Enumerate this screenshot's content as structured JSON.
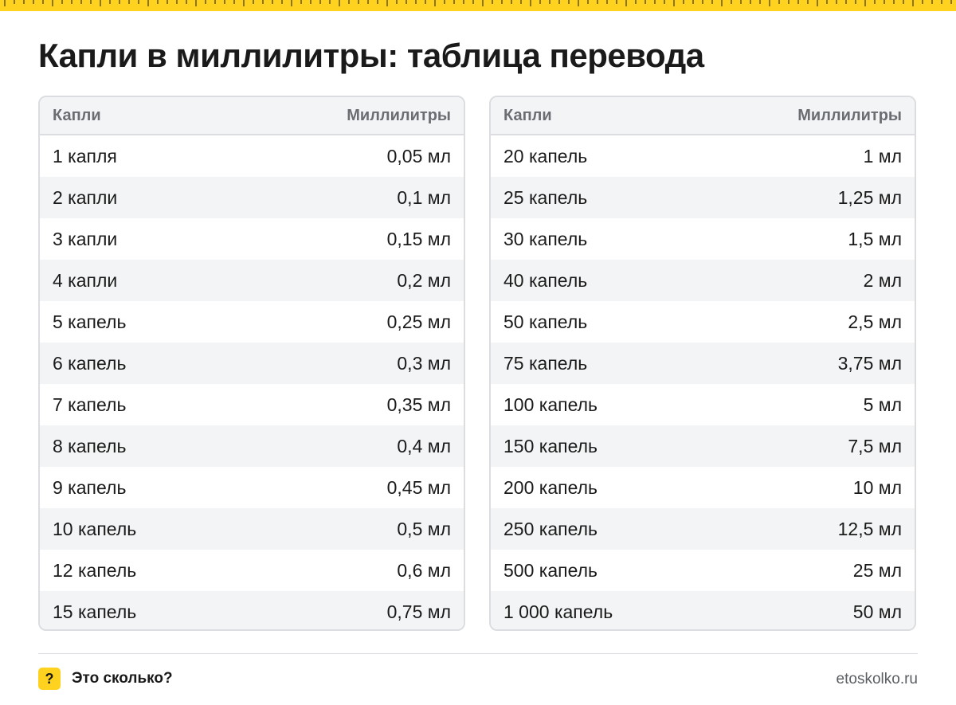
{
  "title": "Капли в миллилитры: таблица перевода",
  "tables": [
    {
      "header": {
        "col1": "Капли",
        "col2": "Миллилитры"
      },
      "rows": [
        {
          "drops": "1 капля",
          "ml": "0,05 мл"
        },
        {
          "drops": "2 капли",
          "ml": "0,1 мл"
        },
        {
          "drops": "3 капли",
          "ml": "0,15 мл"
        },
        {
          "drops": "4 капли",
          "ml": "0,2 мл"
        },
        {
          "drops": "5 капель",
          "ml": "0,25 мл"
        },
        {
          "drops": "6 капель",
          "ml": "0,3 мл"
        },
        {
          "drops": "7 капель",
          "ml": "0,35 мл"
        },
        {
          "drops": "8 капель",
          "ml": "0,4 мл"
        },
        {
          "drops": "9 капель",
          "ml": "0,45 мл"
        },
        {
          "drops": "10 капель",
          "ml": "0,5 мл"
        },
        {
          "drops": "12 капель",
          "ml": "0,6 мл"
        },
        {
          "drops": "15 капель",
          "ml": "0,75 мл"
        }
      ]
    },
    {
      "header": {
        "col1": "Капли",
        "col2": "Миллилитры"
      },
      "rows": [
        {
          "drops": "20 капель",
          "ml": "1 мл"
        },
        {
          "drops": "25 капель",
          "ml": "1,25 мл"
        },
        {
          "drops": "30 капель",
          "ml": "1,5 мл"
        },
        {
          "drops": "40 капель",
          "ml": "2 мл"
        },
        {
          "drops": "50 капель",
          "ml": "2,5 мл"
        },
        {
          "drops": "75 капель",
          "ml": "3,75 мл"
        },
        {
          "drops": "100 капель",
          "ml": "5 мл"
        },
        {
          "drops": "150 капель",
          "ml": "7,5 мл"
        },
        {
          "drops": "200 капель",
          "ml": "10 мл"
        },
        {
          "drops": "250 капель",
          "ml": "12,5 мл"
        },
        {
          "drops": "500 капель",
          "ml": "25 мл"
        },
        {
          "drops": "1 000 капель",
          "ml": "50 мл"
        }
      ]
    }
  ],
  "footer": {
    "badge": "?",
    "brand": "Это сколько?",
    "site": "etoskolko.ru"
  },
  "colors": {
    "accent": "#ffd21f",
    "stripe": "#f3f4f5",
    "border": "#dcdde0",
    "muted": "#6a6d72"
  }
}
